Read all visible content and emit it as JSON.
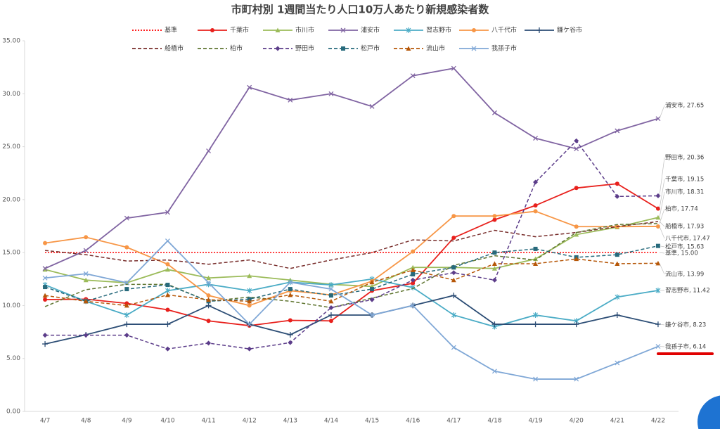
{
  "chart_data": {
    "type": "line",
    "title": "市町村別 1週間当たり人口10万人あたり新規感染者数",
    "categories": [
      "4/7",
      "4/8",
      "4/9",
      "4/10",
      "4/11",
      "4/12",
      "4/13",
      "4/14",
      "4/15",
      "4/16",
      "4/17",
      "4/18",
      "4/19",
      "4/20",
      "4/21",
      "4/22"
    ],
    "ylim": [
      0,
      35
    ],
    "yticks": [
      {
        "value": 0,
        "label": "0.00"
      },
      {
        "value": 5,
        "label": "5.00"
      },
      {
        "value": 10,
        "label": "10.00"
      },
      {
        "value": 15,
        "label": "15.00"
      },
      {
        "value": 20,
        "label": "20.00"
      },
      {
        "value": 25,
        "label": "25.00"
      },
      {
        "value": 30,
        "label": "30.00"
      },
      {
        "value": 35,
        "label": "35.00"
      }
    ],
    "grid": false,
    "legend": "top",
    "series": [
      {
        "name": "基準",
        "color": "#ff0000",
        "dash": "dotted",
        "marker": "none",
        "end_label": "基準, 15.00",
        "values": [
          15,
          15,
          15,
          15,
          15,
          15,
          15,
          15,
          15,
          15,
          15,
          15,
          15,
          15,
          15,
          15
        ]
      },
      {
        "name": "千葉市",
        "color": "#e8201c",
        "dash": "solid",
        "marker": "circle",
        "end_label": "千葉市, 19.15",
        "values": [
          10.56,
          10.6,
          10.2,
          9.6,
          8.55,
          8.1,
          8.6,
          8.55,
          11.4,
          12.1,
          16.4,
          18.1,
          19.45,
          21.1,
          21.5,
          19.15
        ]
      },
      {
        "name": "市川市",
        "color": "#9bbb59",
        "dash": "solid",
        "marker": "triangle",
        "end_label": "市川市, 18.31",
        "values": [
          13.4,
          12.4,
          12.15,
          13.4,
          12.6,
          12.8,
          12.4,
          12.0,
          11.8,
          13.6,
          13.6,
          13.5,
          14.4,
          16.7,
          17.4,
          18.31
        ]
      },
      {
        "name": "浦安市",
        "color": "#8064a2",
        "dash": "solid",
        "marker": "x",
        "end_label": "浦安市, 27.65",
        "values": [
          13.5,
          15.2,
          18.25,
          18.8,
          24.6,
          30.6,
          29.4,
          30.0,
          28.8,
          31.7,
          32.4,
          28.2,
          25.8,
          24.8,
          26.5,
          27.65
        ]
      },
      {
        "name": "習志野市",
        "color": "#4bacc6",
        "dash": "solid",
        "marker": "star",
        "end_label": "習志野市, 11.42",
        "values": [
          11.95,
          10.4,
          9.1,
          11.4,
          12.0,
          11.4,
          12.2,
          11.95,
          12.5,
          11.7,
          9.1,
          8.0,
          9.1,
          8.55,
          10.8,
          11.42
        ]
      },
      {
        "name": "八千代市",
        "color": "#f79646",
        "dash": "solid",
        "marker": "circle",
        "end_label": "八千代市, 17.47",
        "values": [
          15.9,
          16.45,
          15.5,
          13.9,
          10.95,
          10.0,
          11.4,
          11.0,
          12.3,
          15.1,
          18.45,
          18.45,
          18.9,
          17.45,
          17.45,
          17.47
        ]
      },
      {
        "name": "鎌ケ谷市",
        "color": "#2c4d75",
        "dash": "solid",
        "marker": "plus",
        "end_label": "鎌ケ谷市, 8.23",
        "values": [
          6.37,
          7.24,
          8.23,
          8.23,
          10.0,
          8.23,
          7.24,
          9.1,
          9.1,
          10.0,
          10.95,
          8.23,
          8.23,
          8.23,
          9.1,
          8.23
        ]
      },
      {
        "name": "船橋市",
        "color": "#772c2a",
        "dash": "dashed",
        "marker": "none",
        "end_label": "船橋市, 17.93",
        "values": [
          15.2,
          14.8,
          14.2,
          14.3,
          13.9,
          14.3,
          13.5,
          14.3,
          15.0,
          16.2,
          16.1,
          17.1,
          16.5,
          16.9,
          17.45,
          17.93
        ]
      },
      {
        "name": "柏市",
        "color": "#5f7530",
        "dash": "dashed",
        "marker": "none",
        "end_label": "柏市, 17.74",
        "values": [
          9.9,
          11.5,
          12.0,
          12.0,
          10.4,
          10.8,
          10.4,
          9.8,
          10.7,
          11.6,
          13.8,
          14.7,
          14.3,
          16.9,
          17.65,
          17.74
        ]
      },
      {
        "name": "野田市",
        "color": "#5c3d8a",
        "dash": "dashed",
        "marker": "diamond",
        "end_label": "野田市, 20.36",
        "values": [
          7.2,
          7.2,
          7.2,
          5.9,
          6.45,
          5.9,
          6.5,
          9.8,
          10.55,
          12.4,
          13.1,
          12.4,
          21.65,
          25.55,
          20.3,
          20.36
        ]
      },
      {
        "name": "松戸市",
        "color": "#276a7c",
        "dash": "dashed",
        "marker": "square",
        "end_label": "松戸市, 15.63",
        "values": [
          11.75,
          10.4,
          11.55,
          11.95,
          10.4,
          10.6,
          11.55,
          10.95,
          11.55,
          12.95,
          13.6,
          15.0,
          15.35,
          14.55,
          14.8,
          15.63
        ]
      },
      {
        "name": "流山市",
        "color": "#b65708",
        "dash": "dashed",
        "marker": "triangle",
        "end_label": "流山市, 13.99",
        "values": [
          10.95,
          10.4,
          10.0,
          11.0,
          10.55,
          10.4,
          11.0,
          10.4,
          12.2,
          13.35,
          12.4,
          13.95,
          13.95,
          14.4,
          13.95,
          13.99
        ]
      },
      {
        "name": "我孫子市",
        "color": "#7fa7d6",
        "dash": "solid",
        "marker": "x",
        "end_label": "我孫子市, 6.14",
        "values": [
          12.6,
          13.0,
          12.15,
          16.1,
          12.15,
          8.23,
          12.2,
          11.55,
          9.1,
          10.0,
          6.04,
          3.8,
          3.05,
          3.05,
          4.58,
          6.14
        ]
      }
    ]
  }
}
